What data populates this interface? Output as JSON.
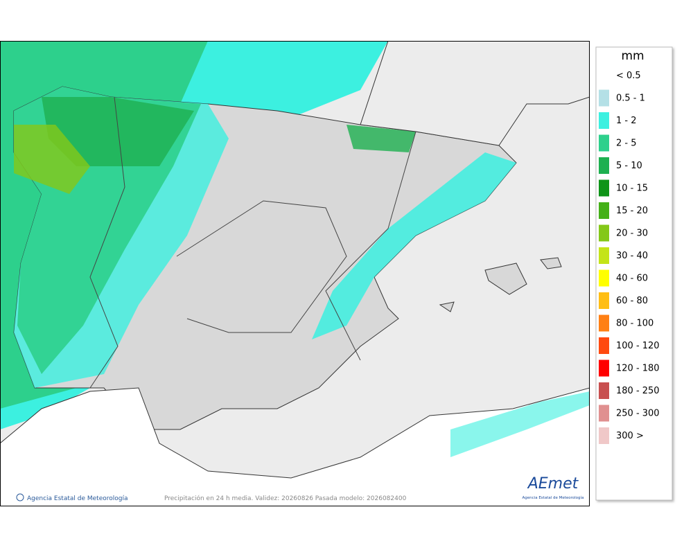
{
  "map": {
    "caption": "Precipitación en 24 h media. Validez: 20260826 Pasada modelo: 2026082400",
    "copyright": "Agencia Estatal de Meteorología",
    "logo": {
      "name": "AEmet",
      "subtitle": "Agencia Estatal de Meteorología"
    }
  },
  "legend": {
    "title": "mm",
    "items": [
      {
        "label": "< 0.5",
        "color": "#ffffff"
      },
      {
        "label": "0.5 - 1",
        "color": "#b4e0e6"
      },
      {
        "label": "1 - 2",
        "color": "#3cf0e0"
      },
      {
        "label": "2 - 5",
        "color": "#2dd08c"
      },
      {
        "label": "5 - 10",
        "color": "#1eb050"
      },
      {
        "label": "10 - 15",
        "color": "#0e9418"
      },
      {
        "label": "15 - 20",
        "color": "#44b018"
      },
      {
        "label": "20 - 30",
        "color": "#84c818"
      },
      {
        "label": "30 - 40",
        "color": "#c4e418"
      },
      {
        "label": "40 - 60",
        "color": "#ffff00"
      },
      {
        "label": "60 - 80",
        "color": "#ffbe14"
      },
      {
        "label": "80 - 100",
        "color": "#ff8014"
      },
      {
        "label": "100 - 120",
        "color": "#ff4a10"
      },
      {
        "label": "120 - 180",
        "color": "#ff0000"
      },
      {
        "label": "180 - 250",
        "color": "#c85050"
      },
      {
        "label": "250 - 300",
        "color": "#e09090"
      },
      {
        "label": "300 >",
        "color": "#f0c8c8"
      }
    ]
  }
}
